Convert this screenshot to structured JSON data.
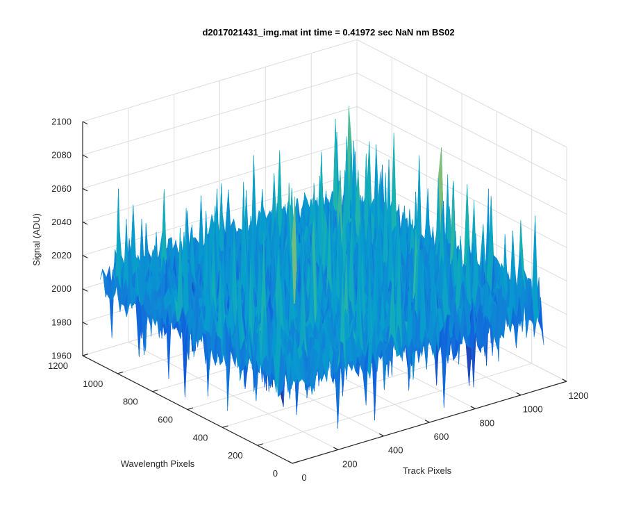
{
  "chart_data": {
    "type": "surface",
    "title": "d2017021431_img.mat int time = 0.41972 sec  NaN nm BS02",
    "xlabel": "Track Pixels",
    "ylabel": "Wavelength Pixels",
    "zlabel": "Signal (ADU)",
    "xlim": [
      0,
      1200
    ],
    "ylim": [
      0,
      1200
    ],
    "zlim": [
      1960,
      2100
    ],
    "x_ticks": [
      "0",
      "200",
      "400",
      "600",
      "800",
      "1000",
      "1200"
    ],
    "y_ticks": [
      "0",
      "200",
      "400",
      "600",
      "800",
      "1000",
      "1200"
    ],
    "z_ticks": [
      "1960",
      "1980",
      "2000",
      "2020",
      "2040",
      "2060",
      "2080",
      "2100"
    ],
    "data_extent": {
      "x": [
        0,
        1100
      ],
      "y": [
        0,
        1100
      ]
    },
    "typical_signal": 2010,
    "noise_range": [
      1965,
      2090
    ],
    "grid": true,
    "colormap": "parula"
  }
}
